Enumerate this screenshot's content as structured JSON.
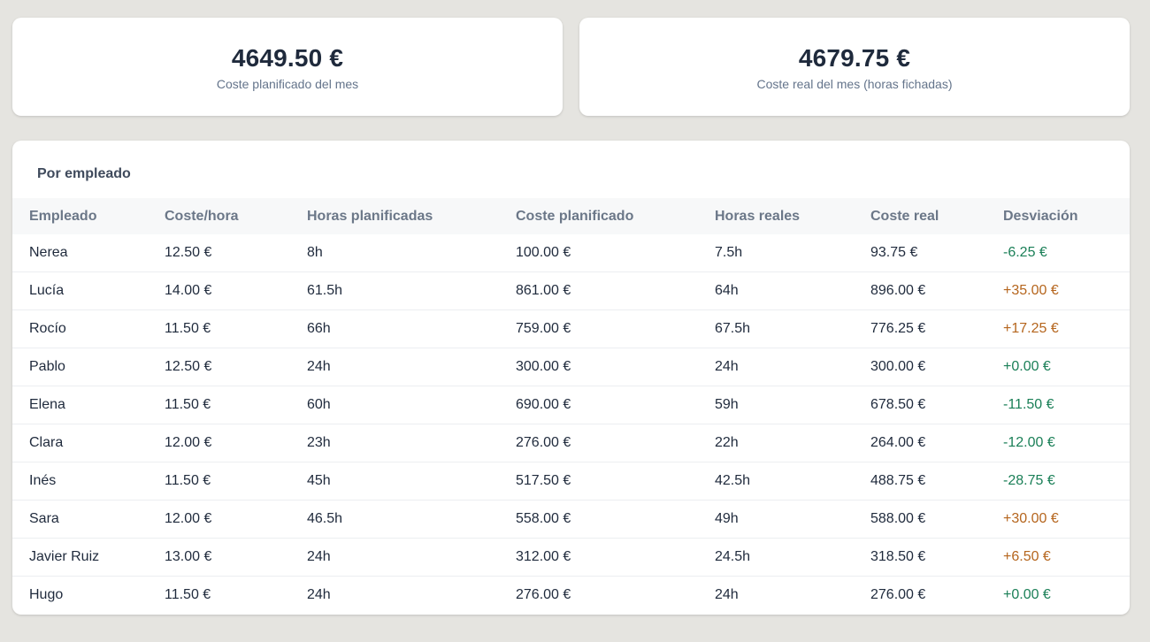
{
  "summary": {
    "planned": {
      "value": "4649.50 €",
      "label": "Coste planificado del mes"
    },
    "actual": {
      "value": "4679.75 €",
      "label": "Coste real del mes (horas fichadas)"
    }
  },
  "section_title": "Por empleado",
  "columns": [
    "Empleado",
    "Coste/hora",
    "Horas planificadas",
    "Coste planificado",
    "Horas reales",
    "Coste real",
    "Desviación"
  ],
  "rows": [
    {
      "name": "Nerea",
      "rate": "12.50 €",
      "planned_hours": "8h",
      "planned_cost": "100.00 €",
      "actual_hours": "7.5h",
      "actual_cost": "93.75 €",
      "deviation": "-6.25 €",
      "deviation_type": "neg"
    },
    {
      "name": "Lucía",
      "rate": "14.00 €",
      "planned_hours": "61.5h",
      "planned_cost": "861.00 €",
      "actual_hours": "64h",
      "actual_cost": "896.00 €",
      "deviation": "+35.00 €",
      "deviation_type": "pos"
    },
    {
      "name": "Rocío",
      "rate": "11.50 €",
      "planned_hours": "66h",
      "planned_cost": "759.00 €",
      "actual_hours": "67.5h",
      "actual_cost": "776.25 €",
      "deviation": "+17.25 €",
      "deviation_type": "pos"
    },
    {
      "name": "Pablo",
      "rate": "12.50 €",
      "planned_hours": "24h",
      "planned_cost": "300.00 €",
      "actual_hours": "24h",
      "actual_cost": "300.00 €",
      "deviation": "+0.00 €",
      "deviation_type": "zero"
    },
    {
      "name": "Elena",
      "rate": "11.50 €",
      "planned_hours": "60h",
      "planned_cost": "690.00 €",
      "actual_hours": "59h",
      "actual_cost": "678.50 €",
      "deviation": "-11.50 €",
      "deviation_type": "neg"
    },
    {
      "name": "Clara",
      "rate": "12.00 €",
      "planned_hours": "23h",
      "planned_cost": "276.00 €",
      "actual_hours": "22h",
      "actual_cost": "264.00 €",
      "deviation": "-12.00 €",
      "deviation_type": "neg"
    },
    {
      "name": "Inés",
      "rate": "11.50 €",
      "planned_hours": "45h",
      "planned_cost": "517.50 €",
      "actual_hours": "42.5h",
      "actual_cost": "488.75 €",
      "deviation": "-28.75 €",
      "deviation_type": "neg"
    },
    {
      "name": "Sara",
      "rate": "12.00 €",
      "planned_hours": "46.5h",
      "planned_cost": "558.00 €",
      "actual_hours": "49h",
      "actual_cost": "588.00 €",
      "deviation": "+30.00 €",
      "deviation_type": "pos"
    },
    {
      "name": "Javier Ruiz",
      "rate": "13.00 €",
      "planned_hours": "24h",
      "planned_cost": "312.00 €",
      "actual_hours": "24.5h",
      "actual_cost": "318.50 €",
      "deviation": "+6.50 €",
      "deviation_type": "pos"
    },
    {
      "name": "Hugo",
      "rate": "11.50 €",
      "planned_hours": "24h",
      "planned_cost": "276.00 €",
      "actual_hours": "24h",
      "actual_cost": "276.00 €",
      "deviation": "+0.00 €",
      "deviation_type": "zero"
    }
  ],
  "colors": {
    "background": "#e5e4e0",
    "card": "#ffffff",
    "text": "#1f2a3c",
    "muted": "#64748b",
    "deviation_negative": "#1a7f57",
    "deviation_positive": "#b5651d"
  }
}
